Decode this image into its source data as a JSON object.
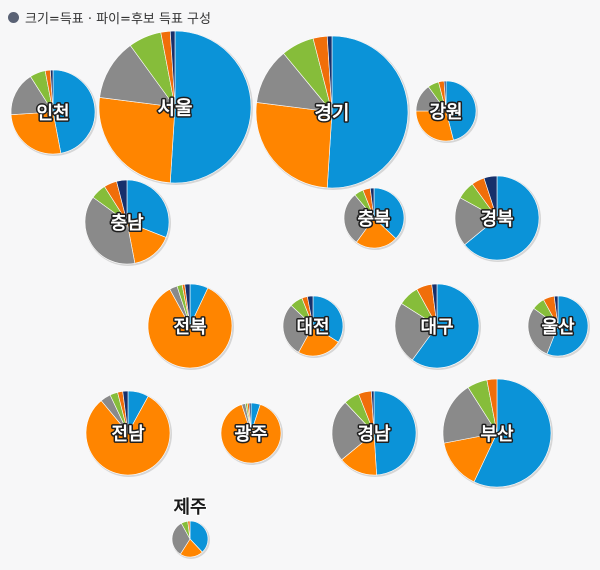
{
  "legend": {
    "text": "크기=득표 · 파이=후보 득표 구성"
  },
  "colors": {
    "blue": "#0b93d8",
    "orange": "#ff8500",
    "gray": "#8a8a8a",
    "green": "#86bd3a",
    "darkorange": "#f06e0a",
    "navy": "#17306b",
    "label_dark": "#1a1a1a"
  },
  "chart_data": {
    "type": "pie",
    "title": "",
    "series_order": [
      "blue",
      "orange",
      "gray",
      "green",
      "darkorange",
      "navy"
    ],
    "regions": [
      {
        "name": "인천",
        "values": [
          47,
          27,
          17,
          6,
          2,
          1
        ]
      },
      {
        "name": "서울",
        "values": [
          51,
          26,
          13,
          7,
          2,
          1
        ]
      },
      {
        "name": "경기",
        "values": [
          51,
          26,
          12,
          7,
          3,
          1
        ]
      },
      {
        "name": "강원",
        "values": [
          46,
          29,
          15,
          6,
          3,
          1
        ]
      },
      {
        "name": "충남",
        "values": [
          31,
          16,
          38,
          6,
          5,
          4
        ]
      },
      {
        "name": "충북",
        "values": [
          37,
          23,
          29,
          5,
          4,
          2
        ]
      },
      {
        "name": "경북",
        "values": [
          64,
          0,
          19,
          7,
          5,
          5
        ]
      },
      {
        "name": "전북",
        "values": [
          7,
          85,
          3,
          2,
          1,
          2
        ]
      },
      {
        "name": "대전",
        "values": [
          34,
          24,
          29,
          7,
          3,
          3
        ]
      },
      {
        "name": "대구",
        "values": [
          60,
          0,
          24,
          8,
          6,
          2
        ]
      },
      {
        "name": "울산",
        "values": [
          56,
          0,
          29,
          7,
          6,
          2
        ]
      },
      {
        "name": "전남",
        "values": [
          8,
          81,
          4,
          3,
          2,
          2
        ]
      },
      {
        "name": "광주",
        "values": [
          5,
          90,
          2,
          1,
          1,
          1
        ]
      },
      {
        "name": "경남",
        "values": [
          49,
          15,
          24,
          6,
          5,
          1
        ]
      },
      {
        "name": "부산",
        "values": [
          57,
          15,
          19,
          6,
          3,
          0
        ]
      },
      {
        "name": "제주",
        "values": [
          38,
          21,
          33,
          6,
          2,
          0
        ]
      }
    ]
  }
}
